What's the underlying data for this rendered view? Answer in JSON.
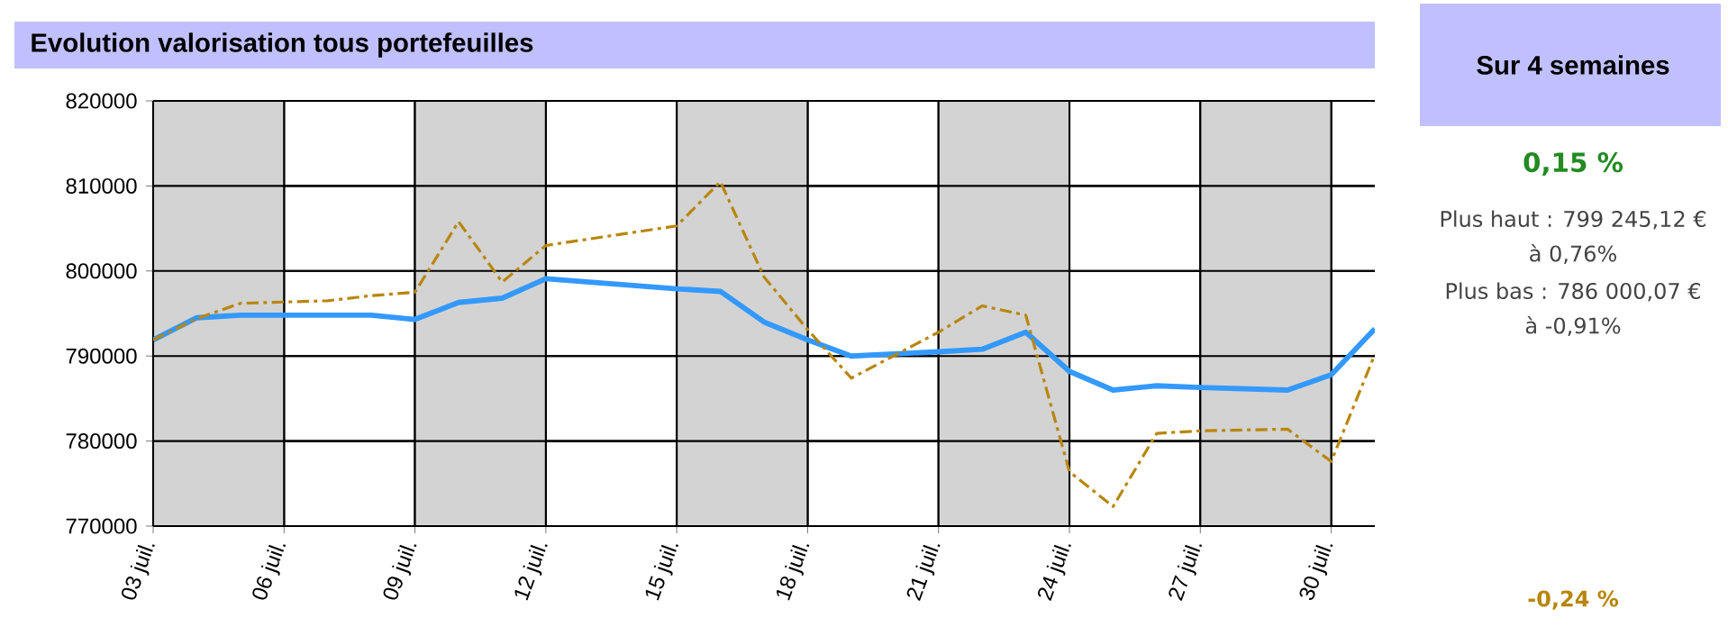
{
  "chart_data": {
    "type": "line",
    "title": "Evolution valorisation tous portefeuilles",
    "x": [
      3,
      4,
      5,
      7,
      8,
      9,
      10,
      11,
      12,
      15,
      16,
      17,
      18,
      19,
      21,
      22,
      23,
      24,
      25,
      26,
      27,
      29,
      30,
      31
    ],
    "series": [
      {
        "color": "#3399ff",
        "line_style": "solid",
        "values": [
          791900,
          794500,
          794800,
          794800,
          794800,
          794300,
          796300,
          796800,
          799100,
          797900,
          797600,
          794000,
          791900,
          790000,
          790500,
          790800,
          792800,
          788200,
          786000,
          786500,
          786300,
          786000,
          787800,
          793200
        ]
      },
      {
        "color": "#b8860b",
        "line_style": "dashdot",
        "values": [
          791900,
          794400,
          796200,
          796500,
          797100,
          797500,
          805800,
          798700,
          803000,
          805300,
          810500,
          799300,
          793100,
          787400,
          792800,
          795900,
          794800,
          776400,
          772300,
          780900,
          781200,
          781400,
          777600,
          790200
        ]
      }
    ],
    "xlim": [
      3,
      31
    ],
    "ylim": [
      770000,
      820000
    ],
    "xticks": [
      {
        "value": 3,
        "label": "03 juil."
      },
      {
        "value": 6,
        "label": "06 juil."
      },
      {
        "value": 9,
        "label": "09 juil."
      },
      {
        "value": 12,
        "label": "12 juil."
      },
      {
        "value": 15,
        "label": "15 juil."
      },
      {
        "value": 18,
        "label": "18 juil."
      },
      {
        "value": 21,
        "label": "21 juil."
      },
      {
        "value": 24,
        "label": "24 juil."
      },
      {
        "value": 27,
        "label": "27 juil."
      },
      {
        "value": 30,
        "label": "30 juil."
      }
    ],
    "yticks": [
      770000,
      780000,
      790000,
      800000,
      810000,
      820000
    ],
    "bands": [
      {
        "axis": "x",
        "from": 3,
        "to": 6,
        "color": "#d3d3d3"
      },
      {
        "axis": "x",
        "from": 9,
        "to": 12,
        "color": "#d3d3d3"
      },
      {
        "axis": "x",
        "from": 15,
        "to": 18,
        "color": "#d3d3d3"
      },
      {
        "axis": "x",
        "from": 21,
        "to": 24,
        "color": "#d3d3d3"
      },
      {
        "axis": "x",
        "from": 27,
        "to": 30,
        "color": "#d3d3d3"
      }
    ],
    "grid": true,
    "marker": "none",
    "annotations": [
      "Sur 4 semaines",
      "0,15 %",
      "Plus haut : 799 245,12 €",
      "à 0,76%",
      "Plus bas : 786 000,07 €",
      "à -0,91%",
      "-0,24 %"
    ]
  }
}
